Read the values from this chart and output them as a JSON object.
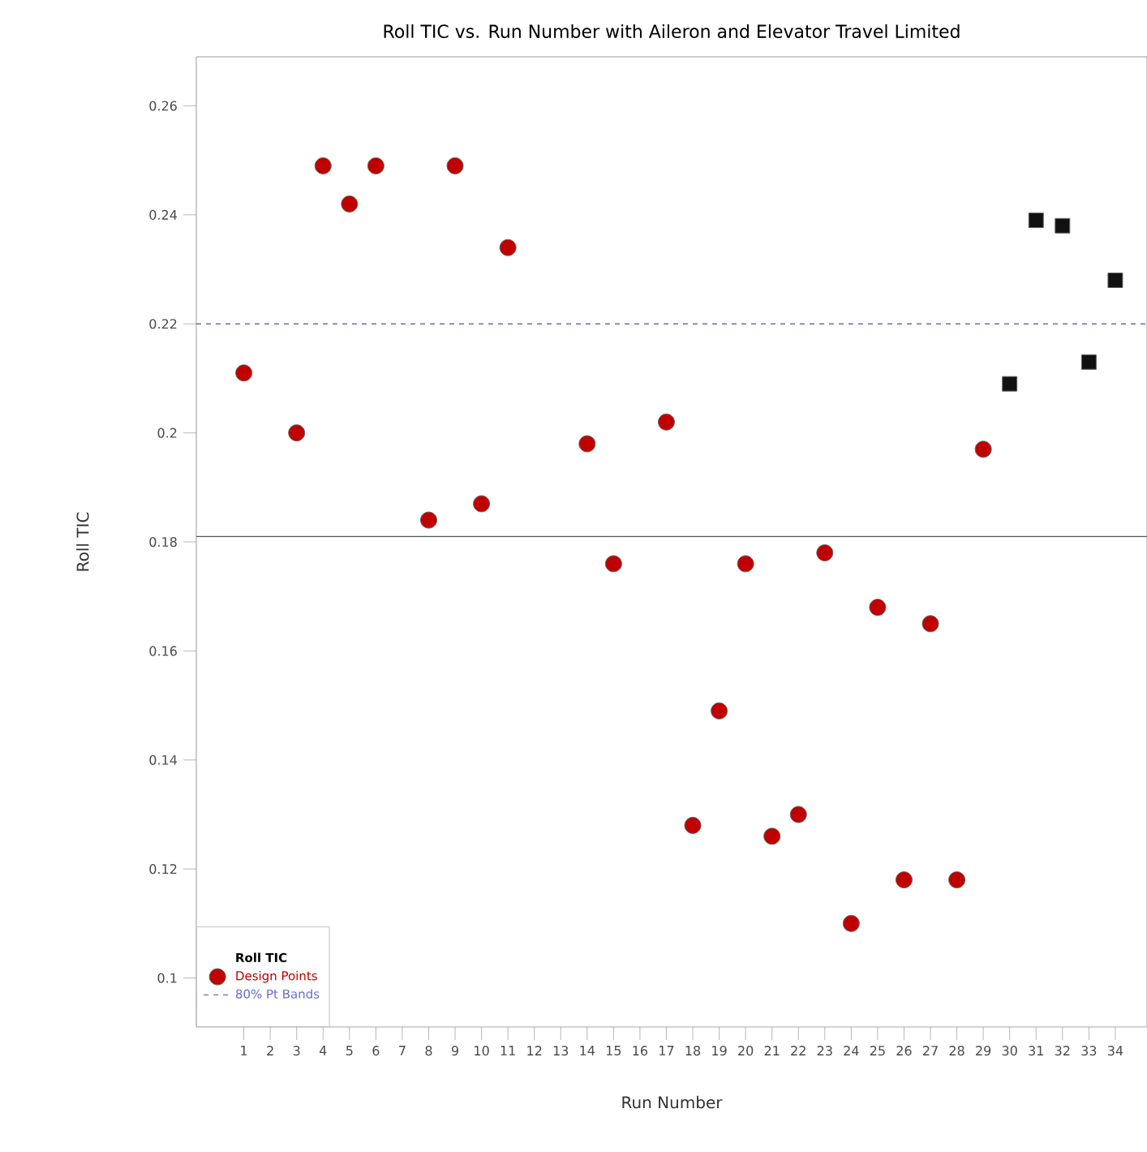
{
  "chart_data": {
    "type": "scatter",
    "title": "Roll TIC vs. Run Number with Aileron and Elevator Travel Limited",
    "xlabel": "Run Number",
    "ylabel": "Roll TIC",
    "legend_title": "Roll TIC",
    "legend": "bottom left",
    "xlim": [
      -0.8,
      35.2
    ],
    "ylim": [
      0.091,
      0.269
    ],
    "xticks": [
      1,
      2,
      3,
      4,
      5,
      6,
      7,
      8,
      9,
      10,
      11,
      12,
      13,
      14,
      15,
      16,
      17,
      18,
      19,
      20,
      21,
      22,
      23,
      24,
      25,
      26,
      27,
      28,
      29,
      30,
      31,
      32,
      33,
      34
    ],
    "yticks": [
      0.1,
      0.12,
      0.14,
      0.16,
      0.18,
      0.2,
      0.22,
      0.24,
      0.26
    ],
    "series": [
      {
        "name": "Design Points",
        "color": "#c00000",
        "marker": "circle",
        "x": [
          1,
          3,
          4,
          5,
          6,
          8,
          9,
          10,
          11,
          14,
          15,
          17,
          18,
          19,
          20,
          21,
          22,
          23,
          24,
          25,
          26,
          27,
          28,
          29
        ],
        "values": [
          0.211,
          0.2,
          0.249,
          0.242,
          0.249,
          0.184,
          0.249,
          0.187,
          0.234,
          0.198,
          0.176,
          0.202,
          0.128,
          0.149,
          0.176,
          0.126,
          0.13,
          0.178,
          0.11,
          0.168,
          0.118,
          0.165,
          0.118,
          0.197
        ]
      },
      {
        "color": "#111111",
        "marker": "square",
        "x": [
          30,
          31,
          32,
          33,
          34
        ],
        "values": [
          0.209,
          0.239,
          0.238,
          0.213,
          0.228
        ]
      }
    ],
    "ref_lines": [
      {
        "axis": "y",
        "value": 0.181,
        "color": "#555555",
        "line_style": "solid"
      },
      {
        "axis": "y",
        "value": 0.22,
        "label": "80% Pt Bands",
        "color": "#6a6ad0",
        "line_style": "dashed"
      }
    ]
  }
}
